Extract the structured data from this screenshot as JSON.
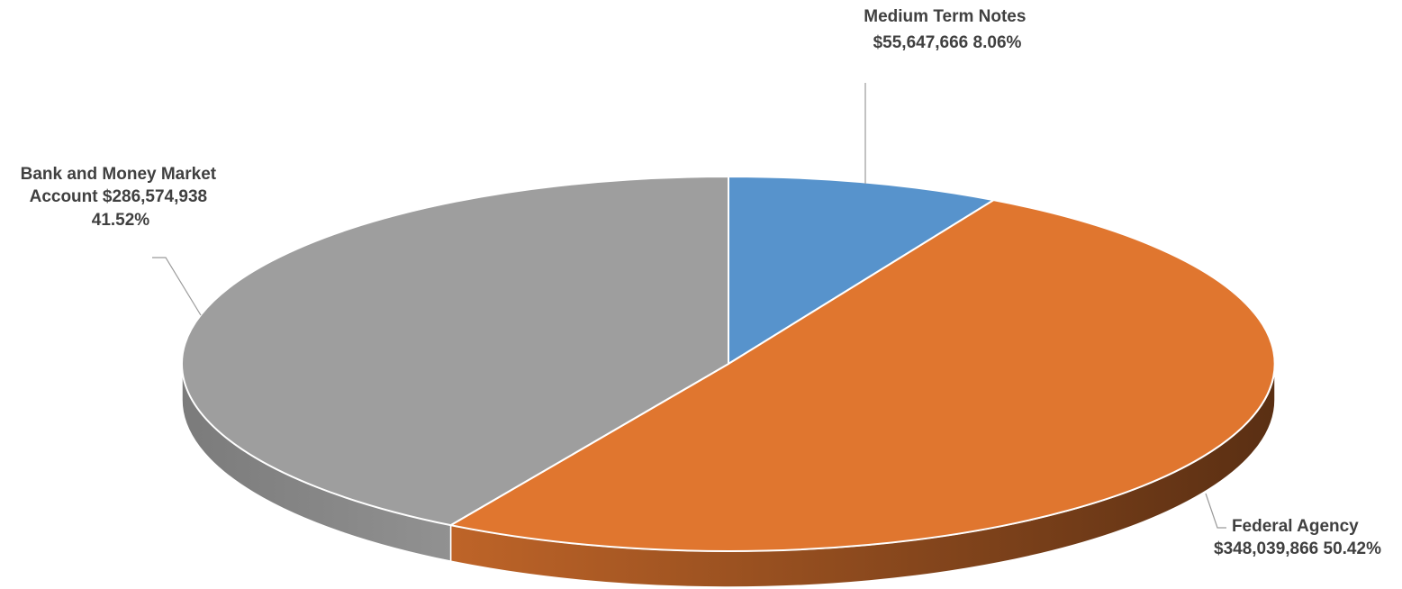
{
  "chart_data": {
    "type": "pie",
    "title": "",
    "slices": [
      {
        "label": "Medium Term Notes",
        "value": 55647666,
        "percent": 8.06,
        "color": "#5793CC",
        "label_lines": [
          "Medium Term Notes",
          "$55,647,666  8.06%"
        ]
      },
      {
        "label": "Federal Agency",
        "value": 348039866,
        "percent": 50.42,
        "color": "#E0762F",
        "label_lines": [
          "Federal Agency",
          "$348,039,866  50.42%"
        ]
      },
      {
        "label": "Bank and Money Market Account",
        "value": 286574938,
        "percent": 41.52,
        "color": "#9E9E9E",
        "label_lines": [
          "Bank and Money Market",
          "Account  $286,574,938",
          "41.52%"
        ]
      }
    ],
    "style": "3d-pie",
    "legend": "none"
  }
}
